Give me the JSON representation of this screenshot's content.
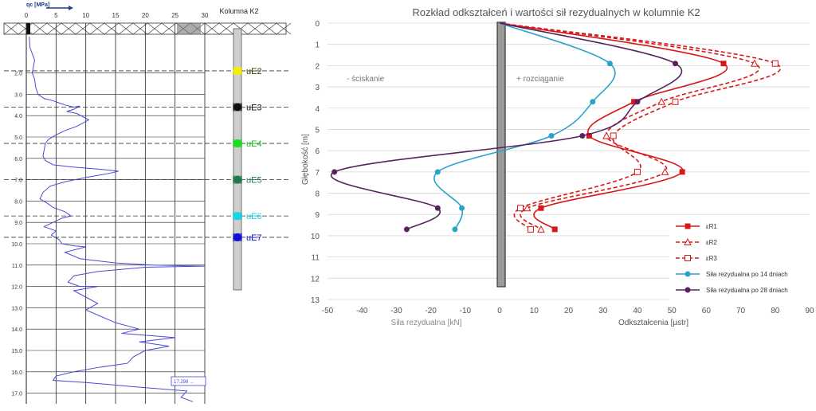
{
  "chart_data": [
    {
      "type": "line",
      "xlabel": "qc [MPa]",
      "ylabel": "",
      "xlim": [
        0,
        30
      ],
      "ylim": [
        0,
        17.5
      ],
      "xticks": [
        0,
        5,
        10,
        15,
        20,
        25,
        30
      ],
      "yticks": [
        2.0,
        3.0,
        4.0,
        5.0,
        6.0,
        7.0,
        8.0,
        9.0,
        10.0,
        11.0,
        12.0,
        13.0,
        14.0,
        15.0,
        16.0,
        17.0
      ],
      "series": [
        {
          "name": "",
          "color": "#4a4ad8",
          "points": [
            [
              0.5,
              0.3
            ],
            [
              0.6,
              0.8
            ],
            [
              1.0,
              1.1
            ],
            [
              1.4,
              1.4
            ],
            [
              1.2,
              1.7
            ],
            [
              1.0,
              2.0
            ],
            [
              1.4,
              2.3
            ],
            [
              1.6,
              2.7
            ],
            [
              2.0,
              3.0
            ],
            [
              3.0,
              3.2
            ],
            [
              4.5,
              3.3
            ],
            [
              5.5,
              3.4
            ],
            [
              6.5,
              3.5
            ],
            [
              8.0,
              3.6
            ],
            [
              9.0,
              3.55
            ],
            [
              8.0,
              3.7
            ],
            [
              6.8,
              3.8
            ],
            [
              8.5,
              3.9
            ],
            [
              10.5,
              4.2
            ],
            [
              8.5,
              4.5
            ],
            [
              6.5,
              4.7
            ],
            [
              5.0,
              4.9
            ],
            [
              3.8,
              5.1
            ],
            [
              3.2,
              5.3
            ],
            [
              3.0,
              5.6
            ],
            [
              2.8,
              5.9
            ],
            [
              3.2,
              6.1
            ],
            [
              4.5,
              6.3
            ],
            [
              7.5,
              6.4
            ],
            [
              12.0,
              6.5
            ],
            [
              15.5,
              6.6
            ],
            [
              14.0,
              6.7
            ],
            [
              10.0,
              6.9
            ],
            [
              6.5,
              7.1
            ],
            [
              4.0,
              7.3
            ],
            [
              2.8,
              7.6
            ],
            [
              2.3,
              7.9
            ],
            [
              3.5,
              8.1
            ],
            [
              4.5,
              8.3
            ],
            [
              6.5,
              8.5
            ],
            [
              7.5,
              8.7
            ],
            [
              6.0,
              8.8
            ],
            [
              4.5,
              9.0
            ],
            [
              3.0,
              9.2
            ],
            [
              5.0,
              9.4
            ],
            [
              4.2,
              9.6
            ],
            [
              5.5,
              9.8
            ],
            [
              6.0,
              10.0
            ],
            [
              8.0,
              10.1
            ],
            [
              10.0,
              10.15
            ],
            [
              6.5,
              10.4
            ],
            [
              9.0,
              10.7
            ],
            [
              15.0,
              10.9
            ],
            [
              21.0,
              11.0
            ],
            [
              30.0,
              11.05
            ],
            [
              20.0,
              11.1
            ],
            [
              12.0,
              11.3
            ],
            [
              8.0,
              11.5
            ],
            [
              7.0,
              11.8
            ],
            [
              9.0,
              12.0
            ],
            [
              12.0,
              12.0
            ],
            [
              8.0,
              12.2
            ],
            [
              10.0,
              12.5
            ],
            [
              12.0,
              12.8
            ],
            [
              10.0,
              13.1
            ],
            [
              12.5,
              13.4
            ],
            [
              15.0,
              13.7
            ],
            [
              19.0,
              14.0
            ],
            [
              16.0,
              14.2
            ],
            [
              25.0,
              14.4
            ],
            [
              19.0,
              14.6
            ],
            [
              24.0,
              14.8
            ],
            [
              20.0,
              15.0
            ],
            [
              18.0,
              15.3
            ],
            [
              17.0,
              15.6
            ],
            [
              12.0,
              15.8
            ],
            [
              8.0,
              16.0
            ],
            [
              5.0,
              16.2
            ],
            [
              4.5,
              16.4
            ],
            [
              10.0,
              16.5
            ],
            [
              18.0,
              16.7
            ],
            [
              27.0,
              16.9
            ],
            [
              26.0,
              17.2
            ],
            [
              28.0,
              17.4
            ]
          ]
        }
      ],
      "annotations": [
        "17.298 →"
      ]
    },
    {
      "type": "line",
      "title": "Rozkład odkształceń i wartości sił rezydualnych  w kolumnie K2",
      "xlabel": "Odkształcenia [µstr]",
      "xlabel2": "Siła rezydualna [kN]",
      "ylabel": "Głębokość [m]",
      "xlim": [
        -50,
        90
      ],
      "ylim": [
        0,
        13
      ],
      "xticks": [
        -50,
        -40,
        -30,
        -20,
        -10,
        0,
        10,
        20,
        30,
        40,
        50,
        60,
        70,
        80,
        90
      ],
      "yticks": [
        0,
        1,
        2,
        3,
        4,
        5,
        6,
        7,
        8,
        9,
        10,
        11,
        12,
        13
      ],
      "grid": "horizontal",
      "legend_position": "bottom-right",
      "annotations": [
        "- ściskanie",
        "+ rozciąganie"
      ],
      "series": [
        {
          "name": "εR1",
          "color": "#d81818",
          "dash": "",
          "marker": "square-filled",
          "points": [
            [
              0,
              0
            ],
            [
              65,
              1.9
            ],
            [
              39,
              3.7
            ],
            [
              26,
              5.3
            ],
            [
              53,
              7.0
            ],
            [
              12,
              8.7
            ],
            [
              16,
              9.7
            ]
          ]
        },
        {
          "name": "εR2",
          "color": "#d81818",
          "dash": "5,3",
          "marker": "triangle-open",
          "points": [
            [
              0,
              0
            ],
            [
              74,
              1.9
            ],
            [
              47,
              3.7
            ],
            [
              31,
              5.3
            ],
            [
              48,
              7.0
            ],
            [
              8,
              8.7
            ],
            [
              12,
              9.7
            ]
          ]
        },
        {
          "name": "εR3",
          "color": "#d81818",
          "dash": "5,3",
          "marker": "square-open",
          "points": [
            [
              0,
              0
            ],
            [
              80,
              1.9
            ],
            [
              51,
              3.7
            ],
            [
              33,
              5.3
            ],
            [
              40,
              7.0
            ],
            [
              6,
              8.7
            ],
            [
              9,
              9.7
            ]
          ]
        },
        {
          "name": "Siła rezydualna po 14 dniach",
          "color": "#2aa3c9",
          "dash": "",
          "marker": "circle",
          "points": [
            [
              0,
              0
            ],
            [
              32,
              1.9
            ],
            [
              27,
              3.7
            ],
            [
              15,
              5.3
            ],
            [
              -18,
              7.0
            ],
            [
              -11,
              8.7
            ],
            [
              -13,
              9.7
            ]
          ]
        },
        {
          "name": "Siła rezydualna po 28 dniach",
          "color": "#5a2160",
          "dash": "",
          "marker": "circle",
          "points": [
            [
              0,
              0
            ],
            [
              51,
              1.9
            ],
            [
              40,
              3.7
            ],
            [
              24,
              5.3
            ],
            [
              -48,
              7.0
            ],
            [
              -18,
              8.7
            ],
            [
              -27,
              9.7
            ]
          ]
        }
      ]
    }
  ],
  "column_k2": {
    "title": "Kolumna K2",
    "sensors": [
      {
        "label": "uE2",
        "depth": 1.9,
        "color": "#f2f200",
        "text_color": "#3a3a00"
      },
      {
        "label": "uE3",
        "depth": 3.6,
        "color": "#111111",
        "text_color": "#111111"
      },
      {
        "label": "uE4",
        "depth": 5.3,
        "color": "#18e018",
        "text_color": "#18c018"
      },
      {
        "label": "uE5",
        "depth": 7.0,
        "color": "#1f7a4a",
        "text_color": "#1f7a4a"
      },
      {
        "label": "uE6",
        "depth": 8.7,
        "color": "#16d6e6",
        "text_color": "#16d6e6"
      },
      {
        "label": "uE7",
        "depth": 9.7,
        "color": "#1010d8",
        "text_color": "#1010d8"
      }
    ]
  }
}
